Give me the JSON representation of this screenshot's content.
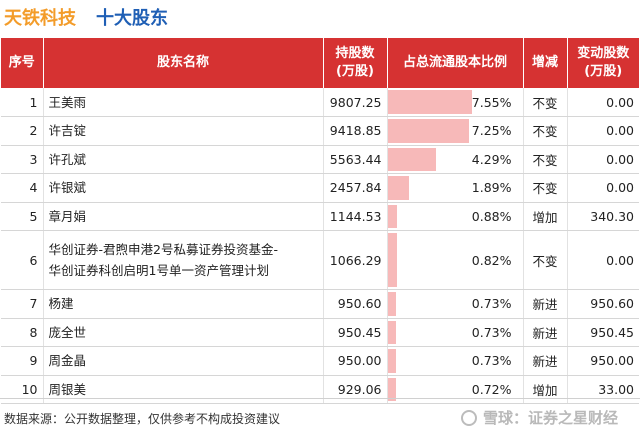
{
  "header": {
    "company": "天铁科技",
    "title": "十大股东"
  },
  "columns": {
    "rank": "序号",
    "name": "股东名称",
    "shares_line1": "持股数",
    "shares_line2": "(万股)",
    "ratio": "占总流通股本比例",
    "change": "增减",
    "delta_line1": "变动股数",
    "delta_line2": "(万股)"
  },
  "rows": [
    {
      "rank": "1",
      "name_line1": "王美雨",
      "name_line2": "",
      "shares": "9807.25",
      "ratio": "7.55%",
      "ratio_value": 7.55,
      "change": "不变",
      "delta": "0.00",
      "increase": false
    },
    {
      "rank": "2",
      "name_line1": "许吉锭",
      "name_line2": "",
      "shares": "9418.85",
      "ratio": "7.25%",
      "ratio_value": 7.25,
      "change": "不变",
      "delta": "0.00",
      "increase": false
    },
    {
      "rank": "3",
      "name_line1": "许孔斌",
      "name_line2": "",
      "shares": "5563.44",
      "ratio": "4.29%",
      "ratio_value": 4.29,
      "change": "不变",
      "delta": "0.00",
      "increase": false
    },
    {
      "rank": "4",
      "name_line1": "许银斌",
      "name_line2": "",
      "shares": "2457.84",
      "ratio": "1.89%",
      "ratio_value": 1.89,
      "change": "不变",
      "delta": "0.00",
      "increase": false
    },
    {
      "rank": "5",
      "name_line1": "章月娟",
      "name_line2": "",
      "shares": "1144.53",
      "ratio": "0.88%",
      "ratio_value": 0.88,
      "change": "增加",
      "delta": "340.30",
      "increase": true
    },
    {
      "rank": "6",
      "name_line1": "华创证券-君煦申港2号私募证券投资基金-",
      "name_line2": "华创证券科创启明1号单一资产管理计划",
      "shares": "1066.29",
      "ratio": "0.82%",
      "ratio_value": 0.82,
      "change": "不变",
      "delta": "0.00",
      "increase": false
    },
    {
      "rank": "7",
      "name_line1": "杨建",
      "name_line2": "",
      "shares": "950.60",
      "ratio": "0.73%",
      "ratio_value": 0.73,
      "change": "新进",
      "delta": "950.60",
      "increase": true
    },
    {
      "rank": "8",
      "name_line1": "庞全世",
      "name_line2": "",
      "shares": "950.45",
      "ratio": "0.73%",
      "ratio_value": 0.73,
      "change": "新进",
      "delta": "950.45",
      "increase": true
    },
    {
      "rank": "9",
      "name_line1": "周金晶",
      "name_line2": "",
      "shares": "950.00",
      "ratio": "0.73%",
      "ratio_value": 0.73,
      "change": "新进",
      "delta": "950.00",
      "increase": true
    },
    {
      "rank": "10",
      "name_line1": "周银美",
      "name_line2": "",
      "shares": "929.06",
      "ratio": "0.72%",
      "ratio_value": 0.72,
      "change": "增加",
      "delta": "33.00",
      "increase": true
    }
  ],
  "ratio_bar_max": 12,
  "colors": {
    "header_bg": "#d63232",
    "bar": "#f7b9b9",
    "increase": "#d62020",
    "company": "#f39c2a",
    "title": "#1f5fb5"
  },
  "footer": {
    "note": "数据来源：公开数据整理，仅供参考不构成投资建议",
    "brand": "雪球：证券之星财经"
  }
}
